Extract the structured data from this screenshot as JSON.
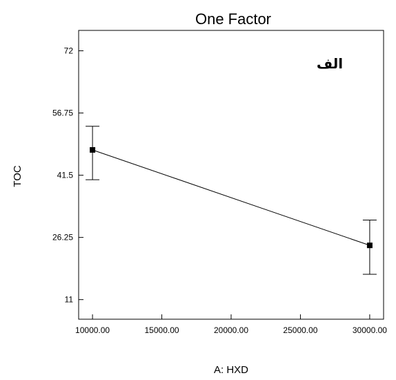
{
  "chart_data": {
    "type": "line",
    "title": "One Factor",
    "xlabel": "A: HXD",
    "ylabel": "TOC",
    "annotation": "الف",
    "xlim": [
      9000,
      31000
    ],
    "ylim": [
      6.2,
      77
    ],
    "x_ticks": [
      10000,
      15000,
      20000,
      25000,
      30000
    ],
    "x_tick_labels": [
      "10000.00",
      "15000.00",
      "20000.00",
      "25000.00",
      "30000.00"
    ],
    "y_ticks": [
      11,
      26.25,
      41.5,
      56.75,
      72
    ],
    "y_tick_labels": [
      "11",
      "26.25",
      "41.5",
      "56.75",
      "72"
    ],
    "grid": false,
    "points": [
      {
        "x": 10000,
        "y": 47.7,
        "y_low": 40.4,
        "y_high": 53.5
      },
      {
        "x": 30000,
        "y": 24.3,
        "y_low": 17.2,
        "y_high": 30.5
      }
    ]
  }
}
